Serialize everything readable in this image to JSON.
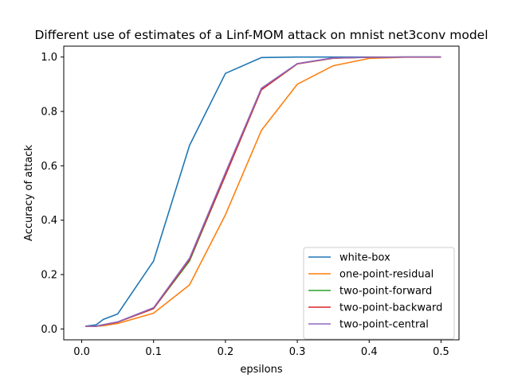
{
  "chart_data": {
    "type": "line",
    "title": "Different use of estimates of a Linf-MOM attack on mnist net3conv model",
    "xlabel": "epsilons",
    "ylabel": "Accuracy of attack",
    "xlim": [
      -0.025,
      0.525
    ],
    "ylim": [
      -0.04,
      1.04
    ],
    "xticks": [
      0.0,
      0.1,
      0.2,
      0.3,
      0.4,
      0.5
    ],
    "xtick_labels": [
      "0.0",
      "0.1",
      "0.2",
      "0.3",
      "0.4",
      "0.5"
    ],
    "yticks": [
      0.0,
      0.2,
      0.4,
      0.6,
      0.8,
      1.0
    ],
    "ytick_labels": [
      "0.0",
      "0.2",
      "0.4",
      "0.6",
      "0.8",
      "1.0"
    ],
    "grid": false,
    "legend_position": "lower-right",
    "x": [
      0.005,
      0.02,
      0.03,
      0.05,
      0.1,
      0.15,
      0.2,
      0.25,
      0.3,
      0.35,
      0.4,
      0.45,
      0.5
    ],
    "series": [
      {
        "name": "white-box",
        "color": "#1f77b4",
        "values": [
          0.01,
          0.015,
          0.035,
          0.055,
          0.25,
          0.675,
          0.94,
          0.998,
          1.0,
          1.0,
          1.0,
          1.0,
          1.0
        ]
      },
      {
        "name": "one-point-residual",
        "color": "#ff7f0e",
        "values": [
          0.01,
          0.01,
          0.012,
          0.02,
          0.058,
          0.162,
          0.42,
          0.73,
          0.9,
          0.968,
          0.995,
          0.999,
          0.999
        ]
      },
      {
        "name": "two-point-forward",
        "color": "#2ca02c",
        "values": [
          0.01,
          0.01,
          0.015,
          0.025,
          0.075,
          0.25,
          0.565,
          0.88,
          0.975,
          0.996,
          0.999,
          1.0,
          1.0
        ]
      },
      {
        "name": "two-point-backward",
        "color": "#d62728",
        "values": [
          0.01,
          0.01,
          0.015,
          0.025,
          0.075,
          0.255,
          0.565,
          0.88,
          0.975,
          0.996,
          0.999,
          1.0,
          1.0
        ]
      },
      {
        "name": "two-point-central",
        "color": "#9467bd",
        "values": [
          0.01,
          0.01,
          0.016,
          0.026,
          0.078,
          0.26,
          0.575,
          0.885,
          0.976,
          0.997,
          0.999,
          1.0,
          1.0
        ]
      }
    ]
  }
}
